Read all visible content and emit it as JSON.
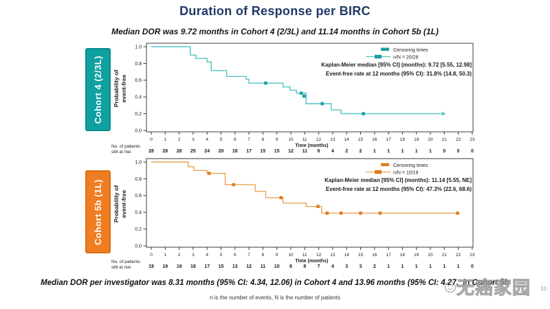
{
  "slide": {
    "title": "Duration of Response per BIRC",
    "title_color": "#1f3864",
    "subtitle": "Median DOR was 9.72 months in Cohort 4 (2/3L) and 11.14 months in Cohort 5b (1L)",
    "footer_main": "Median DOR per investigator was 8.31 months (95% CI: 4.34, 12.06) in Cohort 4 and 13.96 months (95% CI: 4.27,",
    "footer_tail": "in Cohort 5b",
    "footer_note": "n is the number of events, N is the number of patients",
    "watermark_text": "无癌家园",
    "page_number": "10"
  },
  "chart_data": [
    {
      "type": "line",
      "subtype": "kaplan-meier-step",
      "cohort_label": "Cohort 4 (2/3L)",
      "badge_color": "#10a0a0",
      "curve_color": "#4fc3c5",
      "censor_color": "#1a9fa4",
      "ylabel_line1": "Probability of",
      "ylabel_line2": "event-free",
      "xlabel": "Time (months)",
      "legend_censor": "Censoring times",
      "legend_n": "n/N = 20/28",
      "annotation1": "Kaplan-Meier median [95% CI] (months): 9.72 [5.55, 12.98]",
      "annotation2": "Event-free rate at 12 months (95% CI):  31.8% (14.8, 50.3)",
      "ylim": [
        0,
        1
      ],
      "y_ticks": [
        "1.0",
        "0.8",
        "0.6",
        "0.4",
        "0.2",
        "0.0"
      ],
      "x_ticks": [
        0,
        1,
        2,
        3,
        4,
        5,
        6,
        7,
        8,
        9,
        10,
        11,
        12,
        13,
        14,
        15,
        16,
        17,
        18,
        19,
        20,
        21,
        22,
        23
      ],
      "risk_label_line1": "No. of patients",
      "risk_label_line2": "still at risk",
      "risk_counts": [
        28,
        28,
        28,
        25,
        24,
        20,
        18,
        17,
        15,
        15,
        12,
        11,
        6,
        4,
        2,
        2,
        1,
        1,
        1,
        1,
        1,
        0,
        0,
        0
      ],
      "steps": [
        [
          0,
          1.0
        ],
        [
          2.8,
          1.0
        ],
        [
          2.8,
          0.9
        ],
        [
          3.2,
          0.9
        ],
        [
          3.2,
          0.86
        ],
        [
          4.0,
          0.86
        ],
        [
          4.0,
          0.82
        ],
        [
          4.3,
          0.82
        ],
        [
          4.3,
          0.715
        ],
        [
          5.4,
          0.715
        ],
        [
          5.4,
          0.645
        ],
        [
          6.8,
          0.645
        ],
        [
          6.8,
          0.61
        ],
        [
          7.0,
          0.61
        ],
        [
          7.0,
          0.565
        ],
        [
          9.45,
          0.565
        ],
        [
          9.45,
          0.52
        ],
        [
          9.95,
          0.52
        ],
        [
          9.95,
          0.48
        ],
        [
          10.4,
          0.48
        ],
        [
          10.4,
          0.445
        ],
        [
          11.1,
          0.445
        ],
        [
          11.1,
          0.32
        ],
        [
          12.9,
          0.32
        ],
        [
          12.9,
          0.245
        ],
        [
          13.6,
          0.245
        ],
        [
          13.6,
          0.2
        ],
        [
          20.8,
          0.2
        ]
      ],
      "censors": [
        [
          8.2,
          0.565
        ],
        [
          10.75,
          0.445
        ],
        [
          10.95,
          0.41
        ],
        [
          12.25,
          0.32
        ],
        [
          15.2,
          0.2
        ]
      ],
      "end_arrow": true
    },
    {
      "type": "line",
      "subtype": "kaplan-meier-step",
      "cohort_label": "Cohort 5b (1L)",
      "badge_color": "#ef7d22",
      "curve_color": "#e6a457",
      "censor_color": "#dd7e1f",
      "ylabel_line1": "Probability of",
      "ylabel_line2": "event-free",
      "xlabel": "Time (months)",
      "legend_censor": "Censoring times",
      "legend_n": "n/N = 10/19",
      "annotation1": "Kaplan-Meier median [95% CI] (months): 11.14 [5.55, NE]",
      "annotation2": "Event-free rate at 12 months (95% CI): 47.3% (22.6, 68.6)",
      "ylim": [
        0,
        1
      ],
      "y_ticks": [
        "1.0",
        "0.8",
        "0.6",
        "0.4",
        "0.2",
        "0.0"
      ],
      "x_ticks": [
        0,
        1,
        2,
        3,
        4,
        5,
        6,
        7,
        8,
        9,
        10,
        11,
        12,
        13,
        14,
        15,
        16,
        17,
        18,
        19,
        20,
        21,
        22,
        23
      ],
      "risk_label_line1": "No. of patients",
      "risk_label_line2": "still at risk",
      "risk_counts": [
        19,
        19,
        19,
        18,
        17,
        15,
        13,
        12,
        11,
        10,
        8,
        8,
        7,
        4,
        3,
        3,
        2,
        1,
        1,
        1,
        1,
        1,
        1,
        0
      ],
      "steps": [
        [
          0,
          1.0
        ],
        [
          2.65,
          1.0
        ],
        [
          2.65,
          0.945
        ],
        [
          3.05,
          0.945
        ],
        [
          3.05,
          0.9
        ],
        [
          4.0,
          0.9
        ],
        [
          4.0,
          0.865
        ],
        [
          5.3,
          0.865
        ],
        [
          5.3,
          0.73
        ],
        [
          7.45,
          0.73
        ],
        [
          7.45,
          0.65
        ],
        [
          8.2,
          0.65
        ],
        [
          8.2,
          0.575
        ],
        [
          9.45,
          0.575
        ],
        [
          9.45,
          0.51
        ],
        [
          11.1,
          0.51
        ],
        [
          11.1,
          0.47
        ],
        [
          12.2,
          0.47
        ],
        [
          12.2,
          0.39
        ],
        [
          21.95,
          0.39
        ]
      ],
      "censors": [
        [
          4.15,
          0.865
        ],
        [
          5.9,
          0.73
        ],
        [
          9.3,
          0.575
        ],
        [
          11.95,
          0.47
        ],
        [
          12.6,
          0.39
        ],
        [
          13.6,
          0.39
        ],
        [
          15.0,
          0.39
        ],
        [
          16.4,
          0.39
        ],
        [
          21.95,
          0.39
        ]
      ],
      "end_arrow": false
    }
  ]
}
